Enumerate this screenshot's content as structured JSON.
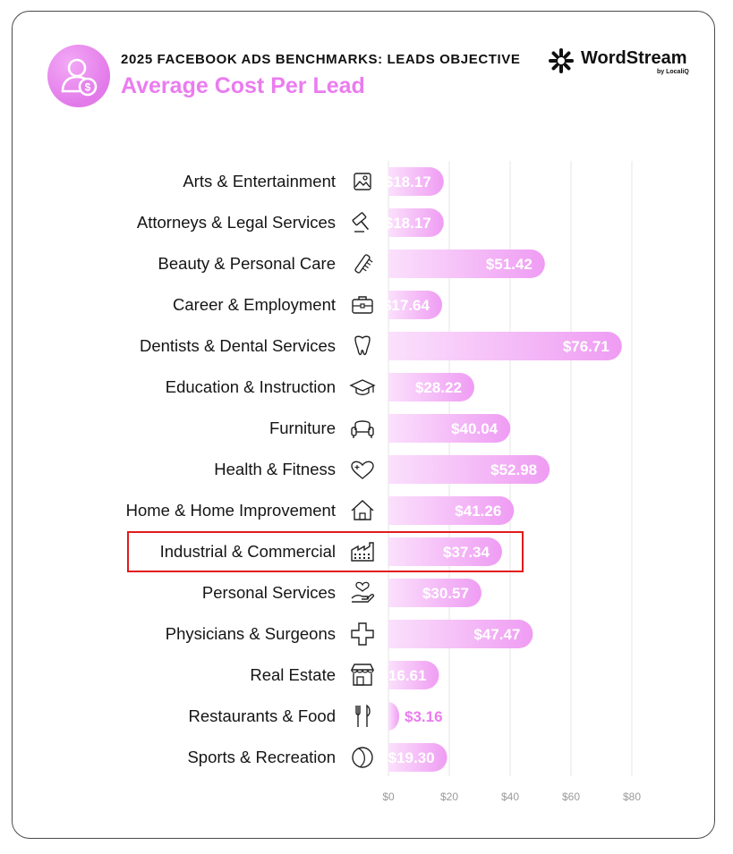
{
  "header": {
    "kicker": "2025 FACEBOOK ADS BENCHMARKS: LEADS OBJECTIVE",
    "title": "Average Cost Per Lead",
    "brand_name": "WordStream",
    "brand_sub": "by LocaliQ"
  },
  "colors": {
    "accent": "#ea7cf0",
    "bar_start": "#fbe0fc",
    "bar_end": "#ef9cf3",
    "highlight": "#e21b1b",
    "grid": "#e4e4e4"
  },
  "chart_data": {
    "type": "bar",
    "orientation": "horizontal",
    "title": "Average Cost Per Lead",
    "categories": [
      "Arts & Entertainment",
      "Attorneys & Legal Services",
      "Beauty & Personal Care",
      "Career & Employment",
      "Dentists & Dental Services",
      "Education & Instruction",
      "Furniture",
      "Health & Fitness",
      "Home & Home Improvement",
      "Industrial & Commercial",
      "Personal Services",
      "Physicians & Surgeons",
      "Real Estate",
      "Restaurants & Food",
      "Sports & Recreation"
    ],
    "icons": [
      "picture-icon",
      "gavel-icon",
      "comb-icon",
      "briefcase-icon",
      "tooth-icon",
      "graduation-cap-icon",
      "armchair-icon",
      "heart-plus-icon",
      "house-icon",
      "factory-icon",
      "hand-heart-icon",
      "medical-cross-icon",
      "storefront-icon",
      "fork-knife-icon",
      "ball-icon"
    ],
    "values": [
      18.17,
      18.17,
      51.42,
      17.64,
      76.71,
      28.22,
      40.04,
      52.98,
      41.26,
      37.34,
      30.57,
      47.47,
      16.61,
      3.16,
      19.3
    ],
    "value_labels": [
      "$18.17",
      "$18.17",
      "$51.42",
      "$17.64",
      "$76.71",
      "$28.22",
      "$40.04",
      "$52.98",
      "$41.26",
      "$37.34",
      "$30.57",
      "$47.47",
      "$16.61",
      "$3.16",
      "$19.30"
    ],
    "xticks": [
      "$0",
      "$20",
      "$40",
      "$60",
      "$80"
    ],
    "xlim": [
      0,
      80
    ],
    "grid": true,
    "highlighted_category": "Industrial & Commercial"
  }
}
